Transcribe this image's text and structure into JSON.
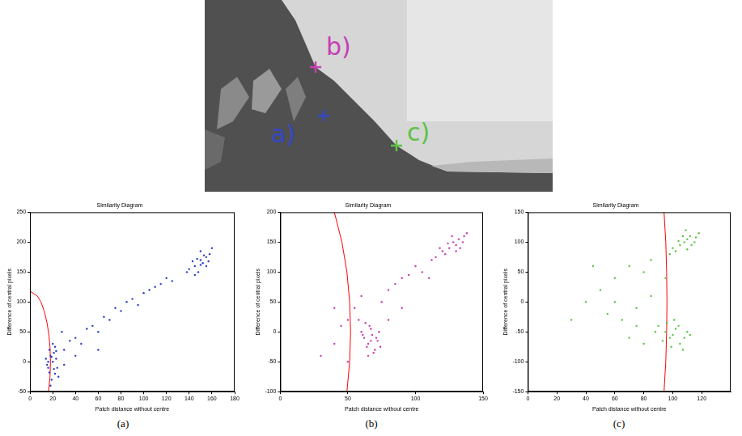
{
  "image": {
    "markers": [
      {
        "label": "a)",
        "color": "#3347c8"
      },
      {
        "label": "b)",
        "color": "#c63fb4"
      },
      {
        "label": "c)",
        "color": "#5cc444"
      }
    ]
  },
  "chart_data": [
    {
      "type": "scatter",
      "caption": "(a)",
      "title": "Similarity Diagram",
      "x_label": "Patch distance without centre",
      "y_label": "Difference of central pixels",
      "xlim": [
        0,
        180
      ],
      "xticks": [
        0,
        20,
        40,
        60,
        80,
        100,
        120,
        140,
        160,
        180
      ],
      "ylim": [
        -50,
        250
      ],
      "yticks": [
        -50,
        0,
        50,
        100,
        150,
        200,
        250
      ],
      "grid": false,
      "series": [
        {
          "type": "scatter",
          "color": "#2b3fc4",
          "values": [
            [
              14,
              5
            ],
            [
              16,
              -10
            ],
            [
              18,
              10
            ],
            [
              20,
              0
            ],
            [
              22,
              -20
            ],
            [
              17,
              20
            ],
            [
              19,
              -30
            ],
            [
              21,
              15
            ],
            [
              23,
              5
            ],
            [
              15,
              -5
            ],
            [
              24,
              -10
            ],
            [
              18,
              -40
            ],
            [
              20,
              30
            ],
            [
              22,
              25
            ],
            [
              16,
              0
            ],
            [
              25,
              -25
            ],
            [
              19,
              8
            ],
            [
              21,
              -12
            ],
            [
              17,
              -18
            ],
            [
              23,
              18
            ],
            [
              30,
              20
            ],
            [
              35,
              35
            ],
            [
              40,
              40
            ],
            [
              45,
              30
            ],
            [
              50,
              55
            ],
            [
              55,
              60
            ],
            [
              60,
              50
            ],
            [
              65,
              75
            ],
            [
              70,
              70
            ],
            [
              75,
              90
            ],
            [
              80,
              85
            ],
            [
              85,
              100
            ],
            [
              90,
              105
            ],
            [
              95,
              95
            ],
            [
              100,
              115
            ],
            [
              105,
              120
            ],
            [
              110,
              125
            ],
            [
              115,
              130
            ],
            [
              120,
              140
            ],
            [
              125,
              135
            ],
            [
              30,
              -5
            ],
            [
              40,
              10
            ],
            [
              28,
              50
            ],
            [
              60,
              20
            ],
            [
              140,
              155
            ],
            [
              145,
              160
            ],
            [
              150,
              170
            ],
            [
              152,
              165
            ],
            [
              155,
              175
            ],
            [
              148,
              150
            ],
            [
              158,
              180
            ],
            [
              143,
              168
            ],
            [
              150,
              185
            ],
            [
              155,
              160
            ],
            [
              147,
              172
            ],
            [
              153,
              178
            ],
            [
              145,
              145
            ],
            [
              157,
              168
            ],
            [
              150,
              162
            ],
            [
              138,
              150
            ],
            [
              160,
              190
            ]
          ]
        },
        {
          "type": "line",
          "color": "#ff0000",
          "values": [
            [
              0,
              118
            ],
            [
              6.5,
              110
            ],
            [
              9.6,
              100
            ],
            [
              12.5,
              85
            ],
            [
              15,
              65
            ],
            [
              16.6,
              45
            ],
            [
              17.6,
              25
            ],
            [
              18,
              0
            ],
            [
              17.6,
              -25
            ],
            [
              16.3,
              -50
            ]
          ]
        }
      ]
    },
    {
      "type": "scatter",
      "caption": "(b)",
      "title": "Similarity Diagram",
      "x_label": "Patch distance without centre",
      "y_label": "Difference of central pixels",
      "xlim": [
        0,
        150
      ],
      "xticks": [
        0,
        50,
        100,
        150
      ],
      "ylim": [
        -100,
        200
      ],
      "yticks": [
        -100,
        -50,
        0,
        50,
        100,
        150,
        200
      ],
      "grid": false,
      "series": [
        {
          "type": "scatter",
          "color": "#c63fb4",
          "values": [
            [
              60,
              0
            ],
            [
              62,
              -10
            ],
            [
              65,
              -20
            ],
            [
              68,
              -5
            ],
            [
              70,
              -30
            ],
            [
              66,
              10
            ],
            [
              72,
              -15
            ],
            [
              64,
              -25
            ],
            [
              67,
              5
            ],
            [
              63,
              15
            ],
            [
              69,
              -35
            ],
            [
              71,
              -10
            ],
            [
              74,
              -25
            ],
            [
              61,
              -5
            ],
            [
              65,
              -40
            ],
            [
              73,
              0
            ],
            [
              58,
              20
            ],
            [
              67,
              -15
            ],
            [
              30,
              -40
            ],
            [
              40,
              -20
            ],
            [
              45,
              10
            ],
            [
              50,
              20
            ],
            [
              55,
              40
            ],
            [
              75,
              50
            ],
            [
              80,
              70
            ],
            [
              85,
              80
            ],
            [
              90,
              90
            ],
            [
              95,
              95
            ],
            [
              100,
              110
            ],
            [
              105,
              100
            ],
            [
              80,
              20
            ],
            [
              90,
              40
            ],
            [
              50,
              -50
            ],
            [
              40,
              40
            ],
            [
              60,
              60
            ],
            [
              110,
              90
            ],
            [
              115,
              125
            ],
            [
              120,
              135
            ],
            [
              125,
              140
            ],
            [
              128,
              150
            ],
            [
              130,
              145
            ],
            [
              132,
              155
            ],
            [
              135,
              150
            ],
            [
              122,
              130
            ],
            [
              127,
              160
            ],
            [
              133,
              140
            ],
            [
              118,
              140
            ],
            [
              136,
              160
            ],
            [
              124,
              148
            ],
            [
              130,
              135
            ],
            [
              138,
              165
            ],
            [
              112,
              120
            ]
          ]
        },
        {
          "type": "line",
          "color": "#ff0000",
          "values": [
            [
              40,
              200
            ],
            [
              45.6,
              150
            ],
            [
              49.3,
              100
            ],
            [
              51.3,
              50
            ],
            [
              52,
              0
            ],
            [
              51.3,
              -50
            ],
            [
              49.3,
              -100
            ]
          ]
        }
      ]
    },
    {
      "type": "scatter",
      "caption": "(c)",
      "title": "Similarity Diagram",
      "x_label": "Patch distance without centre",
      "y_label": "Difference of central pixels",
      "xlim": [
        0,
        140
      ],
      "xticks": [
        0,
        20,
        40,
        60,
        80,
        100,
        120
      ],
      "ylim": [
        -150,
        150
      ],
      "yticks": [
        -150,
        -100,
        -50,
        0,
        50,
        100,
        150
      ],
      "grid": false,
      "series": [
        {
          "type": "scatter",
          "color": "#5cc444",
          "values": [
            [
              100,
              90
            ],
            [
              105,
              95
            ],
            [
              108,
              100
            ],
            [
              110,
              105
            ],
            [
              112,
              110
            ],
            [
              115,
              100
            ],
            [
              102,
              85
            ],
            [
              107,
              110
            ],
            [
              113,
              95
            ],
            [
              118,
              115
            ],
            [
              104,
              102
            ],
            [
              110,
              88
            ],
            [
              116,
              108
            ],
            [
              109,
              120
            ],
            [
              98,
              80
            ],
            [
              90,
              -40
            ],
            [
              95,
              -50
            ],
            [
              98,
              -60
            ],
            [
              100,
              -55
            ],
            [
              102,
              -45
            ],
            [
              105,
              -70
            ],
            [
              108,
              -60
            ],
            [
              96,
              -35
            ],
            [
              110,
              -50
            ],
            [
              93,
              -65
            ],
            [
              104,
              -40
            ],
            [
              107,
              -80
            ],
            [
              99,
              -75
            ],
            [
              112,
              -55
            ],
            [
              101,
              -30
            ],
            [
              88,
              -50
            ],
            [
              40,
              0
            ],
            [
              50,
              20
            ],
            [
              55,
              -20
            ],
            [
              60,
              40
            ],
            [
              65,
              -30
            ],
            [
              70,
              60
            ],
            [
              75,
              -10
            ],
            [
              80,
              50
            ],
            [
              85,
              10
            ],
            [
              30,
              -30
            ],
            [
              45,
              60
            ],
            [
              70,
              -60
            ],
            [
              80,
              -70
            ],
            [
              60,
              0
            ],
            [
              95,
              40
            ],
            [
              85,
              70
            ],
            [
              75,
              -40
            ]
          ]
        },
        {
          "type": "line",
          "color": "#ff0000",
          "values": [
            [
              94,
              150
            ],
            [
              95.2,
              100
            ],
            [
              95.8,
              50
            ],
            [
              96,
              0
            ],
            [
              95.8,
              -50
            ],
            [
              95.2,
              -100
            ],
            [
              94,
              -150
            ]
          ]
        }
      ]
    }
  ]
}
